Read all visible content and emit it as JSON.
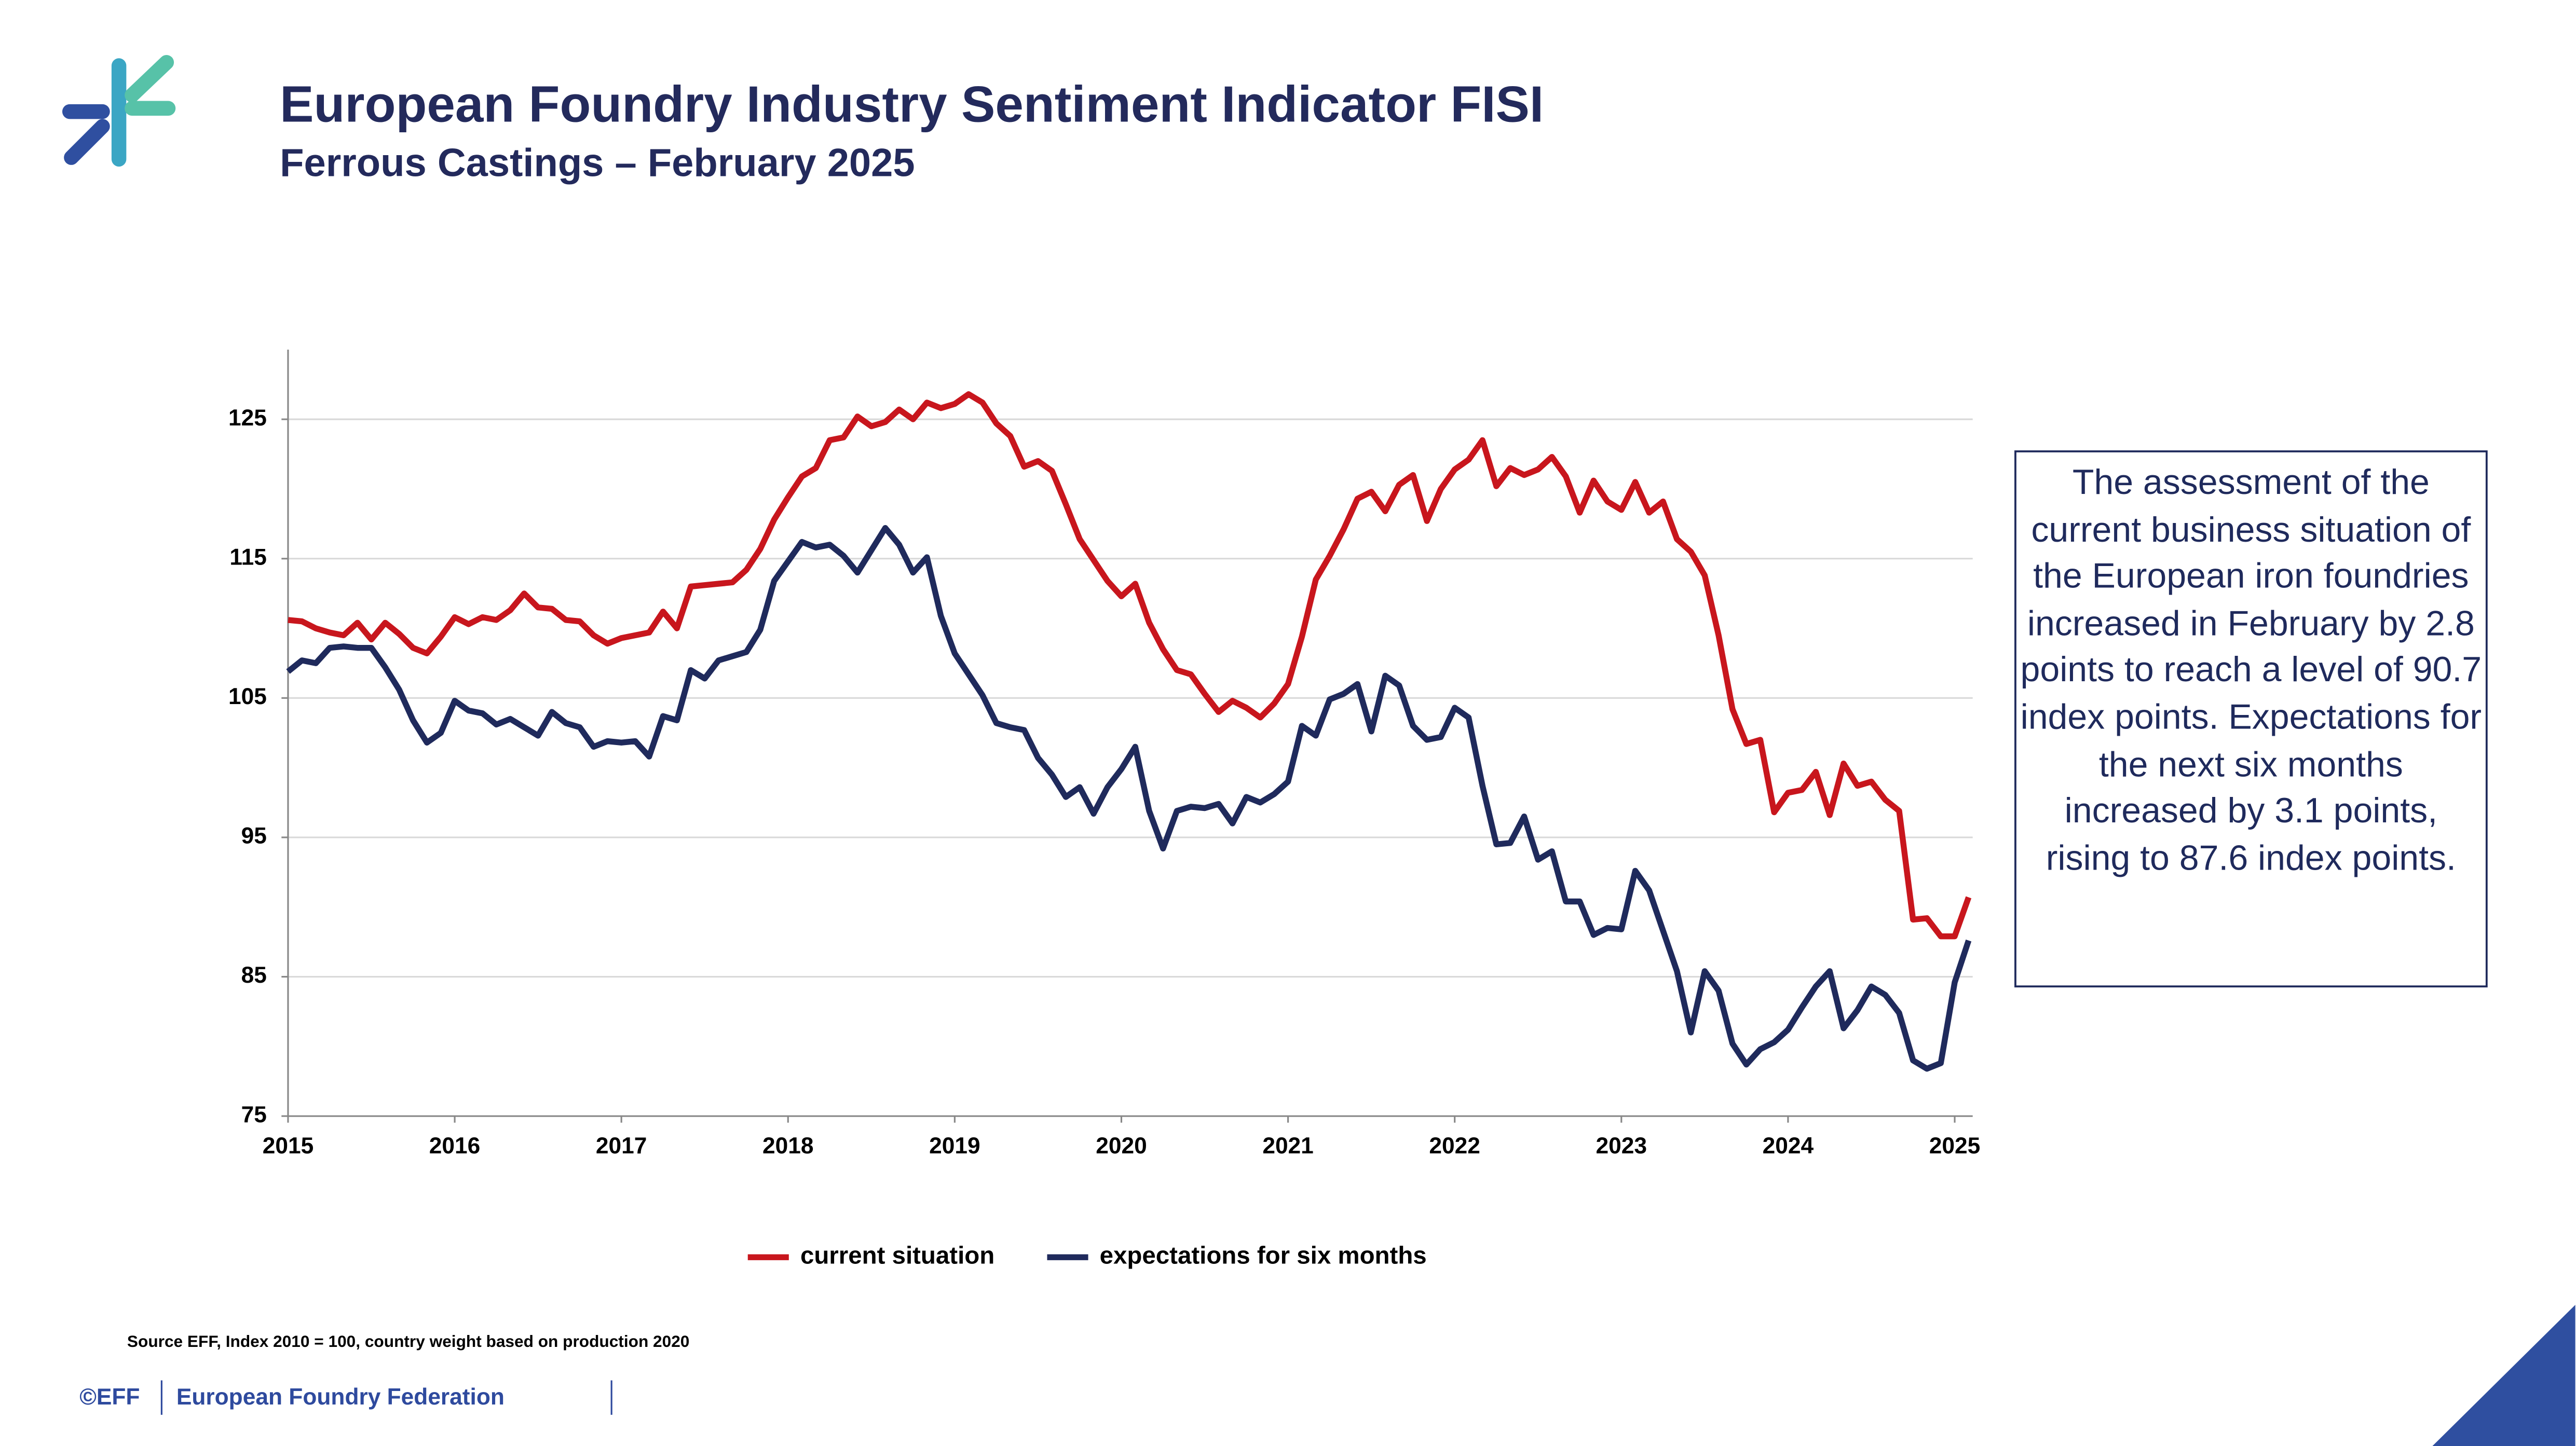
{
  "header": {
    "title": "European Foundry Industry Sentiment Indicator FISI",
    "subtitle": "Ferrous Castings – February 2025"
  },
  "chart_data": {
    "type": "line",
    "categories": [
      "2015",
      null,
      null,
      null,
      null,
      null,
      null,
      null,
      null,
      null,
      null,
      null,
      "2016",
      null,
      null,
      null,
      null,
      null,
      null,
      null,
      null,
      null,
      null,
      null,
      "2017",
      null,
      null,
      null,
      null,
      null,
      null,
      null,
      null,
      null,
      null,
      null,
      "2018",
      null,
      null,
      null,
      null,
      null,
      null,
      null,
      null,
      null,
      null,
      null,
      "2019",
      null,
      null,
      null,
      null,
      null,
      null,
      null,
      null,
      null,
      null,
      null,
      "2020",
      null,
      null,
      null,
      null,
      null,
      null,
      null,
      null,
      null,
      null,
      null,
      "2021",
      null,
      null,
      null,
      null,
      null,
      null,
      null,
      null,
      null,
      null,
      null,
      "2022",
      null,
      null,
      null,
      null,
      null,
      null,
      null,
      null,
      null,
      null,
      null,
      "2023",
      null,
      null,
      null,
      null,
      null,
      null,
      null,
      null,
      null,
      null,
      null,
      "2024",
      null,
      null,
      null,
      null,
      null,
      null,
      null,
      null,
      null,
      null,
      null,
      "2025",
      null
    ],
    "series": [
      {
        "name": "current situation",
        "color": "#c8161d",
        "values": [
          110.6,
          110.5,
          110.0,
          109.7,
          109.5,
          110.4,
          109.2,
          110.4,
          109.6,
          108.6,
          108.2,
          109.4,
          110.8,
          110.3,
          110.8,
          110.6,
          111.3,
          112.5,
          111.5,
          111.4,
          110.6,
          110.5,
          109.5,
          108.9,
          109.3,
          109.5,
          109.7,
          111.2,
          110.0,
          113.0,
          113.1,
          113.2,
          113.3,
          114.2,
          115.7,
          117.8,
          119.4,
          120.9,
          121.5,
          123.5,
          123.7,
          125.2,
          124.5,
          124.8,
          125.7,
          125.0,
          126.2,
          125.8,
          126.1,
          126.8,
          126.2,
          124.7,
          123.8,
          121.6,
          122.0,
          121.3,
          118.9,
          116.4,
          114.9,
          113.4,
          112.3,
          113.2,
          110.4,
          108.5,
          107.0,
          106.7,
          105.3,
          104.0,
          104.8,
          104.3,
          103.6,
          104.6,
          106.0,
          109.4,
          113.5,
          115.2,
          117.1,
          119.3,
          119.8,
          118.4,
          120.3,
          121.0,
          117.7,
          120.0,
          121.4,
          122.1,
          123.5,
          120.2,
          121.5,
          121.0,
          121.4,
          122.3,
          120.9,
          118.3,
          120.6,
          119.1,
          118.5,
          120.5,
          118.3,
          119.1,
          116.4,
          115.5,
          113.8,
          109.5,
          104.2,
          101.7,
          102.0,
          96.8,
          98.2,
          98.4,
          99.7,
          96.6,
          100.3,
          98.7,
          99.0,
          97.7,
          96.9,
          89.1,
          89.2,
          87.9,
          87.9,
          90.7
        ]
      },
      {
        "name": "expectations for six months",
        "color": "#1f2a5c",
        "values": [
          106.9,
          107.7,
          107.5,
          108.6,
          108.7,
          108.6,
          108.6,
          107.2,
          105.6,
          103.4,
          101.8,
          102.5,
          104.8,
          104.1,
          103.9,
          103.1,
          103.5,
          102.9,
          102.3,
          104.0,
          103.2,
          102.9,
          101.5,
          101.9,
          101.8,
          101.9,
          100.8,
          103.7,
          103.4,
          107.0,
          106.4,
          107.7,
          108.0,
          108.3,
          109.9,
          113.4,
          114.8,
          116.2,
          115.8,
          116.0,
          115.2,
          114.0,
          115.6,
          117.2,
          116.0,
          114.0,
          115.1,
          110.9,
          108.2,
          106.7,
          105.2,
          103.2,
          102.9,
          102.7,
          100.7,
          99.5,
          97.9,
          98.6,
          96.7,
          98.6,
          99.9,
          101.5,
          96.9,
          94.2,
          96.9,
          97.2,
          97.1,
          97.4,
          96.0,
          97.9,
          97.5,
          98.1,
          99.0,
          103.0,
          102.3,
          104.9,
          105.3,
          106.0,
          102.6,
          106.6,
          105.9,
          103.0,
          102.0,
          102.2,
          104.3,
          103.6,
          98.7,
          94.5,
          94.6,
          96.5,
          93.4,
          94.0,
          90.4,
          90.4,
          88.0,
          88.5,
          88.4,
          92.6,
          91.2,
          88.3,
          85.4,
          81.0,
          85.4,
          84.0,
          80.2,
          78.7,
          79.8,
          80.3,
          81.2,
          82.8,
          84.3,
          85.4,
          81.3,
          82.6,
          84.3,
          83.7,
          82.4,
          79.0,
          78.4,
          78.8,
          84.6,
          87.6
        ]
      }
    ],
    "ylim": [
      75,
      130
    ],
    "yticks": [
      75,
      85,
      95,
      105,
      115,
      125
    ],
    "grid": true,
    "legend": "bottom",
    "annotation": "The assessment of the current business situation of the European iron foundries increased in February by 2.8 points to reach a level of 90.7 index points. Expectations for the next six months increased by 3.1 points, rising to 87.6 index points.",
    "source": "Source EFF, Index 2010 = 100, country weight based on production 2020"
  },
  "footer": {
    "copyright": "©EFF",
    "organization": "European Foundry Federation"
  }
}
